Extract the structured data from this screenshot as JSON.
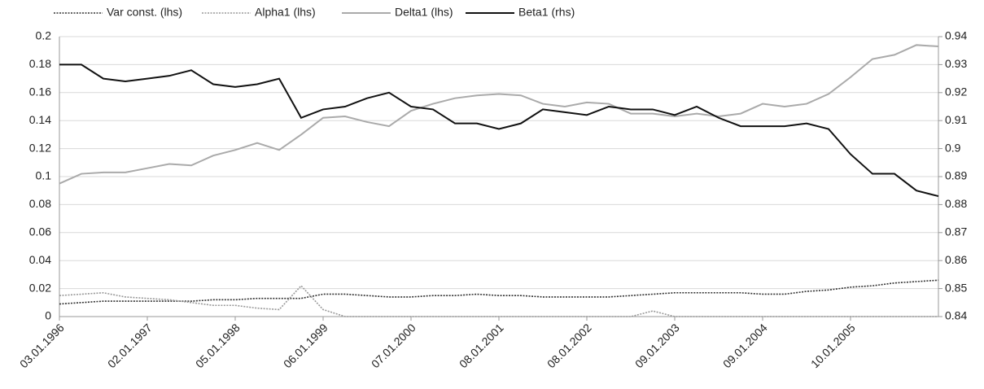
{
  "chart_data": {
    "type": "line",
    "categories": [
      "03.01.1996",
      null,
      null,
      null,
      "02.01.1997",
      null,
      null,
      null,
      "05.01.1998",
      null,
      null,
      null,
      "06.01.1999",
      null,
      null,
      null,
      "07.01.2000",
      null,
      null,
      null,
      "08.01.2001",
      null,
      null,
      null,
      "08.01.2002",
      null,
      null,
      null,
      "09.01.2003",
      null,
      null,
      null,
      "09.01.2004",
      null,
      null,
      null,
      "10.01.2005",
      null,
      null,
      null,
      null
    ],
    "series": [
      {
        "name": "Var const. (lhs)",
        "color": "#333333",
        "dash": "dotted",
        "axis": "y",
        "values": [
          0.009,
          0.01,
          0.011,
          0.011,
          0.011,
          0.011,
          0.011,
          0.012,
          0.012,
          0.013,
          0.013,
          0.013,
          0.016,
          0.016,
          0.015,
          0.014,
          0.014,
          0.015,
          0.015,
          0.016,
          0.015,
          0.015,
          0.014,
          0.014,
          0.014,
          0.014,
          0.015,
          0.016,
          0.017,
          0.017,
          0.017,
          0.017,
          0.016,
          0.016,
          0.018,
          0.019,
          0.021,
          0.022,
          0.024,
          0.025,
          0.026
        ]
      },
      {
        "name": "Alpha1 (lhs)",
        "color": "#999999",
        "dash": "dotted",
        "axis": "y",
        "values": [
          0.015,
          0.016,
          0.017,
          0.014,
          0.013,
          0.012,
          0.01,
          0.008,
          0.008,
          0.006,
          0.005,
          0.022,
          0.005,
          0,
          0,
          0,
          0,
          0,
          0,
          0,
          0,
          0,
          0,
          0,
          0,
          0,
          0,
          0.004,
          0,
          0,
          0,
          0,
          0,
          0,
          0,
          0,
          0,
          0,
          0,
          0,
          0
        ]
      },
      {
        "name": "Delta1 (lhs)",
        "color": "#aaaaaa",
        "dash": "solid",
        "axis": "y",
        "values": [
          0.095,
          0.102,
          0.103,
          0.103,
          0.106,
          0.109,
          0.108,
          0.115,
          0.119,
          0.124,
          0.119,
          0.13,
          0.142,
          0.143,
          0.139,
          0.136,
          0.147,
          0.152,
          0.156,
          0.158,
          0.159,
          0.158,
          0.152,
          0.15,
          0.153,
          0.152,
          0.145,
          0.145,
          0.143,
          0.145,
          0.143,
          0.145,
          0.152,
          0.15,
          0.152,
          0.159,
          0.171,
          0.184,
          0.187,
          0.194,
          0.193
        ]
      },
      {
        "name": "Beta1 (rhs)",
        "color": "#111111",
        "dash": "solid",
        "axis": "y2",
        "values": [
          0.93,
          0.93,
          0.925,
          0.924,
          0.925,
          0.926,
          0.928,
          0.923,
          0.922,
          0.923,
          0.925,
          0.911,
          0.914,
          0.915,
          0.918,
          0.92,
          0.915,
          0.914,
          0.909,
          0.909,
          0.907,
          0.909,
          0.914,
          0.913,
          0.912,
          0.915,
          0.914,
          0.914,
          0.912,
          0.915,
          0.911,
          0.908,
          0.908,
          0.908,
          0.909,
          0.907,
          0.898,
          0.891,
          0.891,
          0.885,
          0.883
        ]
      }
    ],
    "ylim": [
      0,
      0.2
    ],
    "yticks": [
      0,
      0.02,
      0.04,
      0.06,
      0.08,
      0.1,
      0.12,
      0.14,
      0.16,
      0.18,
      0.2
    ],
    "y2lim": [
      0.84,
      0.94
    ],
    "y2ticks": [
      0.84,
      0.85,
      0.86,
      0.87,
      0.88,
      0.89,
      0.9,
      0.91,
      0.92,
      0.93,
      0.94
    ],
    "grid": true,
    "legend": "top"
  }
}
